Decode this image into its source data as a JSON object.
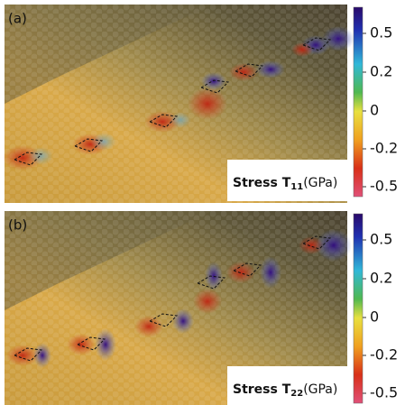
{
  "panels": [
    {
      "label": "(a)",
      "title": {
        "prefix": "Stress T",
        "subscript": "11",
        "unit": "(GPa)"
      },
      "colorbar_ticks": [
        0.5,
        0.2,
        0,
        -0.2,
        -0.5
      ]
    },
    {
      "label": "(b)",
      "title": {
        "prefix": "Stress T",
        "subscript": "22",
        "unit": "(GPa)"
      },
      "colorbar_ticks": [
        0.5,
        0.2,
        0,
        -0.2,
        -0.5
      ]
    }
  ]
}
